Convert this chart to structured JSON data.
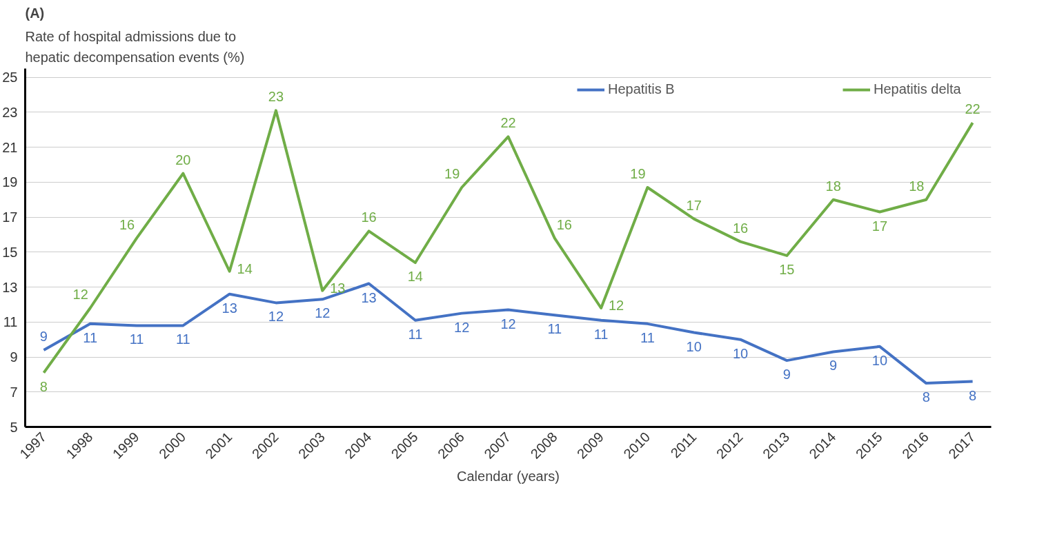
{
  "chart_data": {
    "type": "line",
    "title": "(A)",
    "ylabel": "Rate of hospital admissions due to hepatic decompensation events (%)",
    "xlabel": "Calendar (years)",
    "categories": [
      "1997",
      "1998",
      "1999",
      "2000",
      "2001",
      "2002",
      "2003",
      "2004",
      "2005",
      "2006",
      "2007",
      "2008",
      "2009",
      "2010",
      "2011",
      "2012",
      "2013",
      "2014",
      "2015",
      "2016",
      "2017"
    ],
    "series": [
      {
        "name": "Hepatitis B",
        "color": "#4472c4",
        "values": [
          9.4,
          10.9,
          10.8,
          10.8,
          12.6,
          12.1,
          12.3,
          13.2,
          11.1,
          11.5,
          11.7,
          11.4,
          11.1,
          10.9,
          10.4,
          10.0,
          8.8,
          9.3,
          9.6,
          7.5,
          7.6
        ],
        "value_labels": [
          "9",
          "11",
          "11",
          "11",
          "13",
          "12",
          "12",
          "13",
          "11",
          "12",
          "12",
          "11",
          "11",
          "11",
          "10",
          "10",
          "9",
          "9",
          "10",
          "8",
          "8"
        ]
      },
      {
        "name": "Hepatitis delta",
        "color": "#70ad47",
        "values": [
          8.1,
          11.8,
          15.8,
          19.5,
          13.9,
          23.1,
          12.8,
          16.2,
          14.4,
          18.7,
          21.6,
          15.8,
          11.8,
          18.7,
          16.9,
          15.6,
          14.8,
          18.0,
          17.3,
          18.0,
          22.4
        ],
        "value_labels": [
          "8",
          "12",
          "16",
          "20",
          "14",
          "23",
          "13",
          "16",
          "14",
          "19",
          "22",
          "16",
          "12",
          "19",
          "17",
          "16",
          "15",
          "18",
          "17",
          "18",
          "22"
        ]
      }
    ],
    "ylim": [
      5,
      25.5
    ],
    "yticks": [
      5,
      7,
      9,
      11,
      13,
      15,
      17,
      19,
      21,
      23,
      25
    ],
    "grid": "y",
    "legend": "top",
    "marker": "none",
    "line_style": "solid"
  }
}
